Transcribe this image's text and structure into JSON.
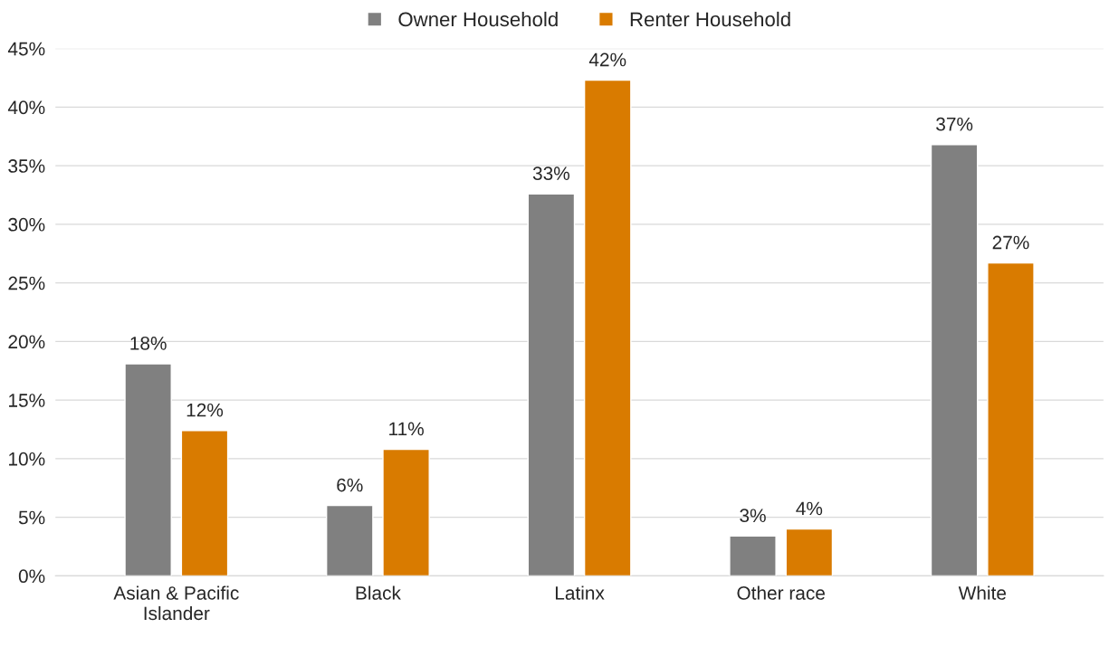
{
  "chart_data": {
    "type": "bar",
    "categories": [
      "Asian & Pacific Islander",
      "Black",
      "Latinx",
      "Other race",
      "White"
    ],
    "series": [
      {
        "name": "Owner Household",
        "color": "#808080",
        "values": [
          18.1,
          6.0,
          32.6,
          3.4,
          36.8
        ],
        "value_labels": [
          "18%",
          "6%",
          "33%",
          "3%",
          "37%"
        ]
      },
      {
        "name": "Renter Household",
        "color": "#d97b00",
        "values": [
          12.4,
          10.8,
          42.3,
          4.0,
          26.7
        ],
        "value_labels": [
          "12%",
          "11%",
          "42%",
          "4%",
          "27%"
        ]
      }
    ],
    "ylim": [
      0,
      45
    ],
    "yticks": [
      {
        "value": 0,
        "label": "0%"
      },
      {
        "value": 5,
        "label": "5%"
      },
      {
        "value": 10,
        "label": "10%"
      },
      {
        "value": 15,
        "label": "15%"
      },
      {
        "value": 20,
        "label": "20%"
      },
      {
        "value": 25,
        "label": "25%"
      },
      {
        "value": 30,
        "label": "30%"
      },
      {
        "value": 35,
        "label": "35%"
      },
      {
        "value": 40,
        "label": "40%"
      },
      {
        "value": 45,
        "label": "45%"
      }
    ],
    "grid": "y",
    "legend": "top"
  }
}
